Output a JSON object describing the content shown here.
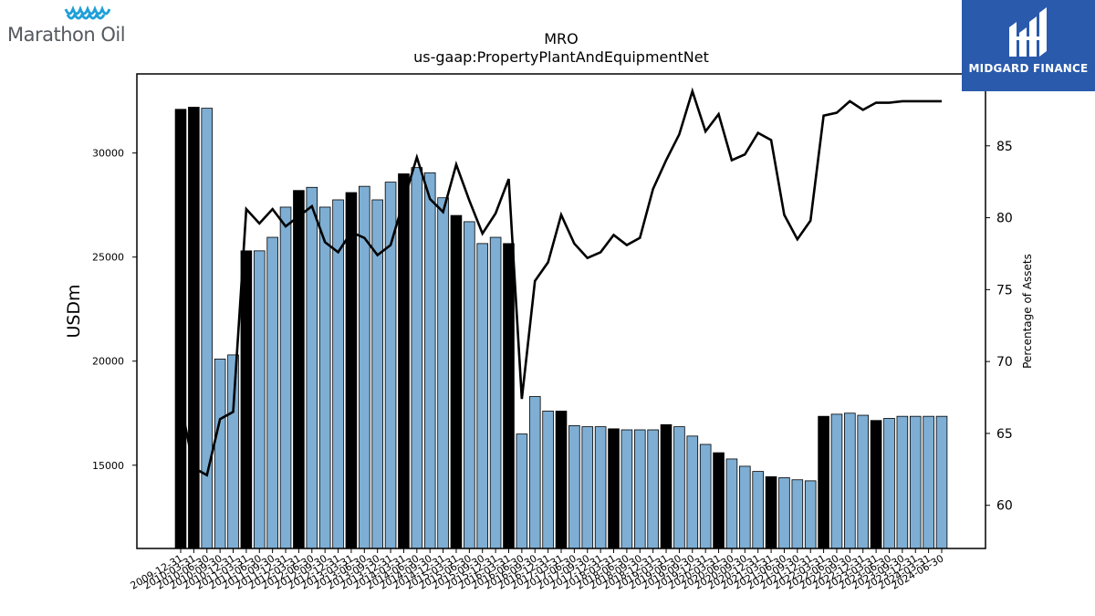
{
  "brand": {
    "left_logo": "Marathon Oil",
    "right_logo": "MIDGARD FINANCE",
    "right_logo_color": "#2a5aac",
    "left_logo_mark_color": "#1fa0d8"
  },
  "chart_data": {
    "type": "bar",
    "title": "MRO",
    "subtitle": "us-gaap:PropertyPlantAndEquipmentNet",
    "ylabel": "USDm",
    "y2label": "Percentage of Assets",
    "ylim": [
      11000,
      33800
    ],
    "y2lim": [
      57,
      90
    ],
    "yticks": [
      15000,
      20000,
      25000,
      30000
    ],
    "y2ticks": [
      60,
      65,
      70,
      75,
      80,
      85
    ],
    "bar_color_quarter": "#7eaed3",
    "bar_color_year_end": "#000000",
    "line_color": "#000000",
    "categories": [
      "2009-12-31",
      "2010-03-31",
      "2010-06-30",
      "2010-09-30",
      "2010-12-31",
      "2011-03-31",
      "2011-06-30",
      "2011-09-30",
      "2011-12-31",
      "2012-03-31",
      "2012-06-30",
      "2012-09-30",
      "2012-12-31",
      "2013-03-31",
      "2013-06-30",
      "2013-09-30",
      "2013-12-31",
      "2014-03-31",
      "2014-06-30",
      "2014-09-30",
      "2014-12-31",
      "2015-03-31",
      "2015-06-30",
      "2015-09-30",
      "2015-12-31",
      "2016-03-31",
      "2016-06-30",
      "2016-09-30",
      "2016-12-31",
      "2017-03-31",
      "2017-06-30",
      "2017-09-30",
      "2017-12-31",
      "2018-03-31",
      "2018-06-30",
      "2018-09-30",
      "2018-12-31",
      "2019-03-31",
      "2019-06-30",
      "2019-09-30",
      "2019-12-31",
      "2020-03-31",
      "2020-06-30",
      "2020-09-30",
      "2020-12-31",
      "2021-03-31",
      "2021-06-30",
      "2021-09-30",
      "2021-12-31",
      "2022-03-31",
      "2022-06-30",
      "2022-09-30",
      "2022-12-31",
      "2023-03-31",
      "2023-06-30",
      "2023-09-30",
      "2023-12-31",
      "2024-03-31",
      "2024-06-30"
    ],
    "xtick_labels": [
      "2009-12-31",
      "2010-03-31",
      "2010-06-30",
      "2010-09-30",
      "2010-12-31",
      "2011-03-31",
      "2011-06-30",
      "2011-09-30",
      "2011-12-31",
      "2012-03-31",
      "2012-06-30",
      "2012-09-30",
      "2012-12-31",
      "2013-03-31",
      "2013-06-30",
      "2013-09-30",
      "2013-12-31",
      "2014-03-31",
      "2014-06-30",
      "2014-09-30",
      "2014-12-31",
      "2015-03-31",
      "2015-06-30",
      "2015-09-30",
      "2015-12-31",
      "2016-03-31",
      "2016-06-30",
      "2016-09-30",
      "2016-12-31",
      "2017-03-31",
      "2017-06-30",
      "2017-09-30",
      "2017-12-31",
      "2018-03-31",
      "2018-06-30",
      "2018-09-30",
      "2018-12-31",
      "2019-03-31",
      "2019-06-30",
      "2019-09-30",
      "2019-12-31",
      "2020-03-31",
      "2020-06-30",
      "2020-09-30",
      "2020-12-31",
      "2021-03-31",
      "2021-06-30",
      "2021-09-30",
      "2021-12-31",
      "2022-03-31",
      "2022-06-30",
      "2022-09-30",
      "2022-12-31",
      "2023-03-31",
      "2023-06-30",
      "2023-09-30",
      "2023-12-31",
      "2024-03-31",
      "2024-06-30"
    ],
    "series": [
      {
        "kind": "bar",
        "axis": "left",
        "values": [
          32100,
          32200,
          32150,
          20100,
          20300,
          25300,
          25300,
          25950,
          27400,
          28200,
          28350,
          27400,
          27750,
          28100,
          28400,
          27750,
          28600,
          29000,
          29300,
          29050,
          27850,
          27000,
          26700,
          25650,
          25950,
          25650,
          16500,
          18300,
          17600,
          17600,
          16900,
          16850,
          16850,
          16750,
          16700,
          16700,
          16700,
          16950,
          16850,
          16400,
          16000,
          15600,
          15300,
          14950,
          14700,
          14450,
          14400,
          14300,
          14250,
          17350,
          17450,
          17500,
          17400,
          17150,
          17250,
          17350,
          17350,
          17350,
          17350
        ],
        "year_end": [
          true,
          true,
          false,
          false,
          false,
          true,
          false,
          false,
          false,
          true,
          false,
          false,
          false,
          true,
          false,
          false,
          false,
          true,
          false,
          false,
          false,
          true,
          false,
          false,
          false,
          true,
          false,
          false,
          false,
          true,
          false,
          false,
          false,
          true,
          false,
          false,
          false,
          true,
          false,
          false,
          false,
          true,
          false,
          false,
          false,
          true,
          false,
          false,
          false,
          true,
          false,
          false,
          false,
          true,
          false,
          false,
          false,
          false,
          false
        ]
      },
      {
        "kind": "line",
        "axis": "right",
        "values": [
          67.1,
          62.6,
          62.1,
          66.0,
          66.5,
          80.6,
          79.6,
          80.6,
          79.4,
          80.1,
          80.8,
          78.3,
          77.6,
          79.0,
          78.6,
          77.4,
          78.1,
          81.2,
          84.2,
          81.3,
          80.4,
          83.7,
          81.2,
          78.9,
          80.3,
          82.7,
          67.4,
          75.6,
          76.9,
          80.2,
          78.2,
          77.2,
          77.6,
          78.8,
          78.1,
          78.6,
          82.0,
          84.0,
          85.8,
          88.8,
          86.0,
          87.2,
          84.0,
          84.4,
          85.9,
          85.4,
          80.2,
          78.5,
          79.8,
          87.1,
          87.3,
          88.1,
          87.5,
          88.0,
          88.0,
          88.1,
          88.1,
          88.1,
          88.1
        ]
      }
    ]
  }
}
